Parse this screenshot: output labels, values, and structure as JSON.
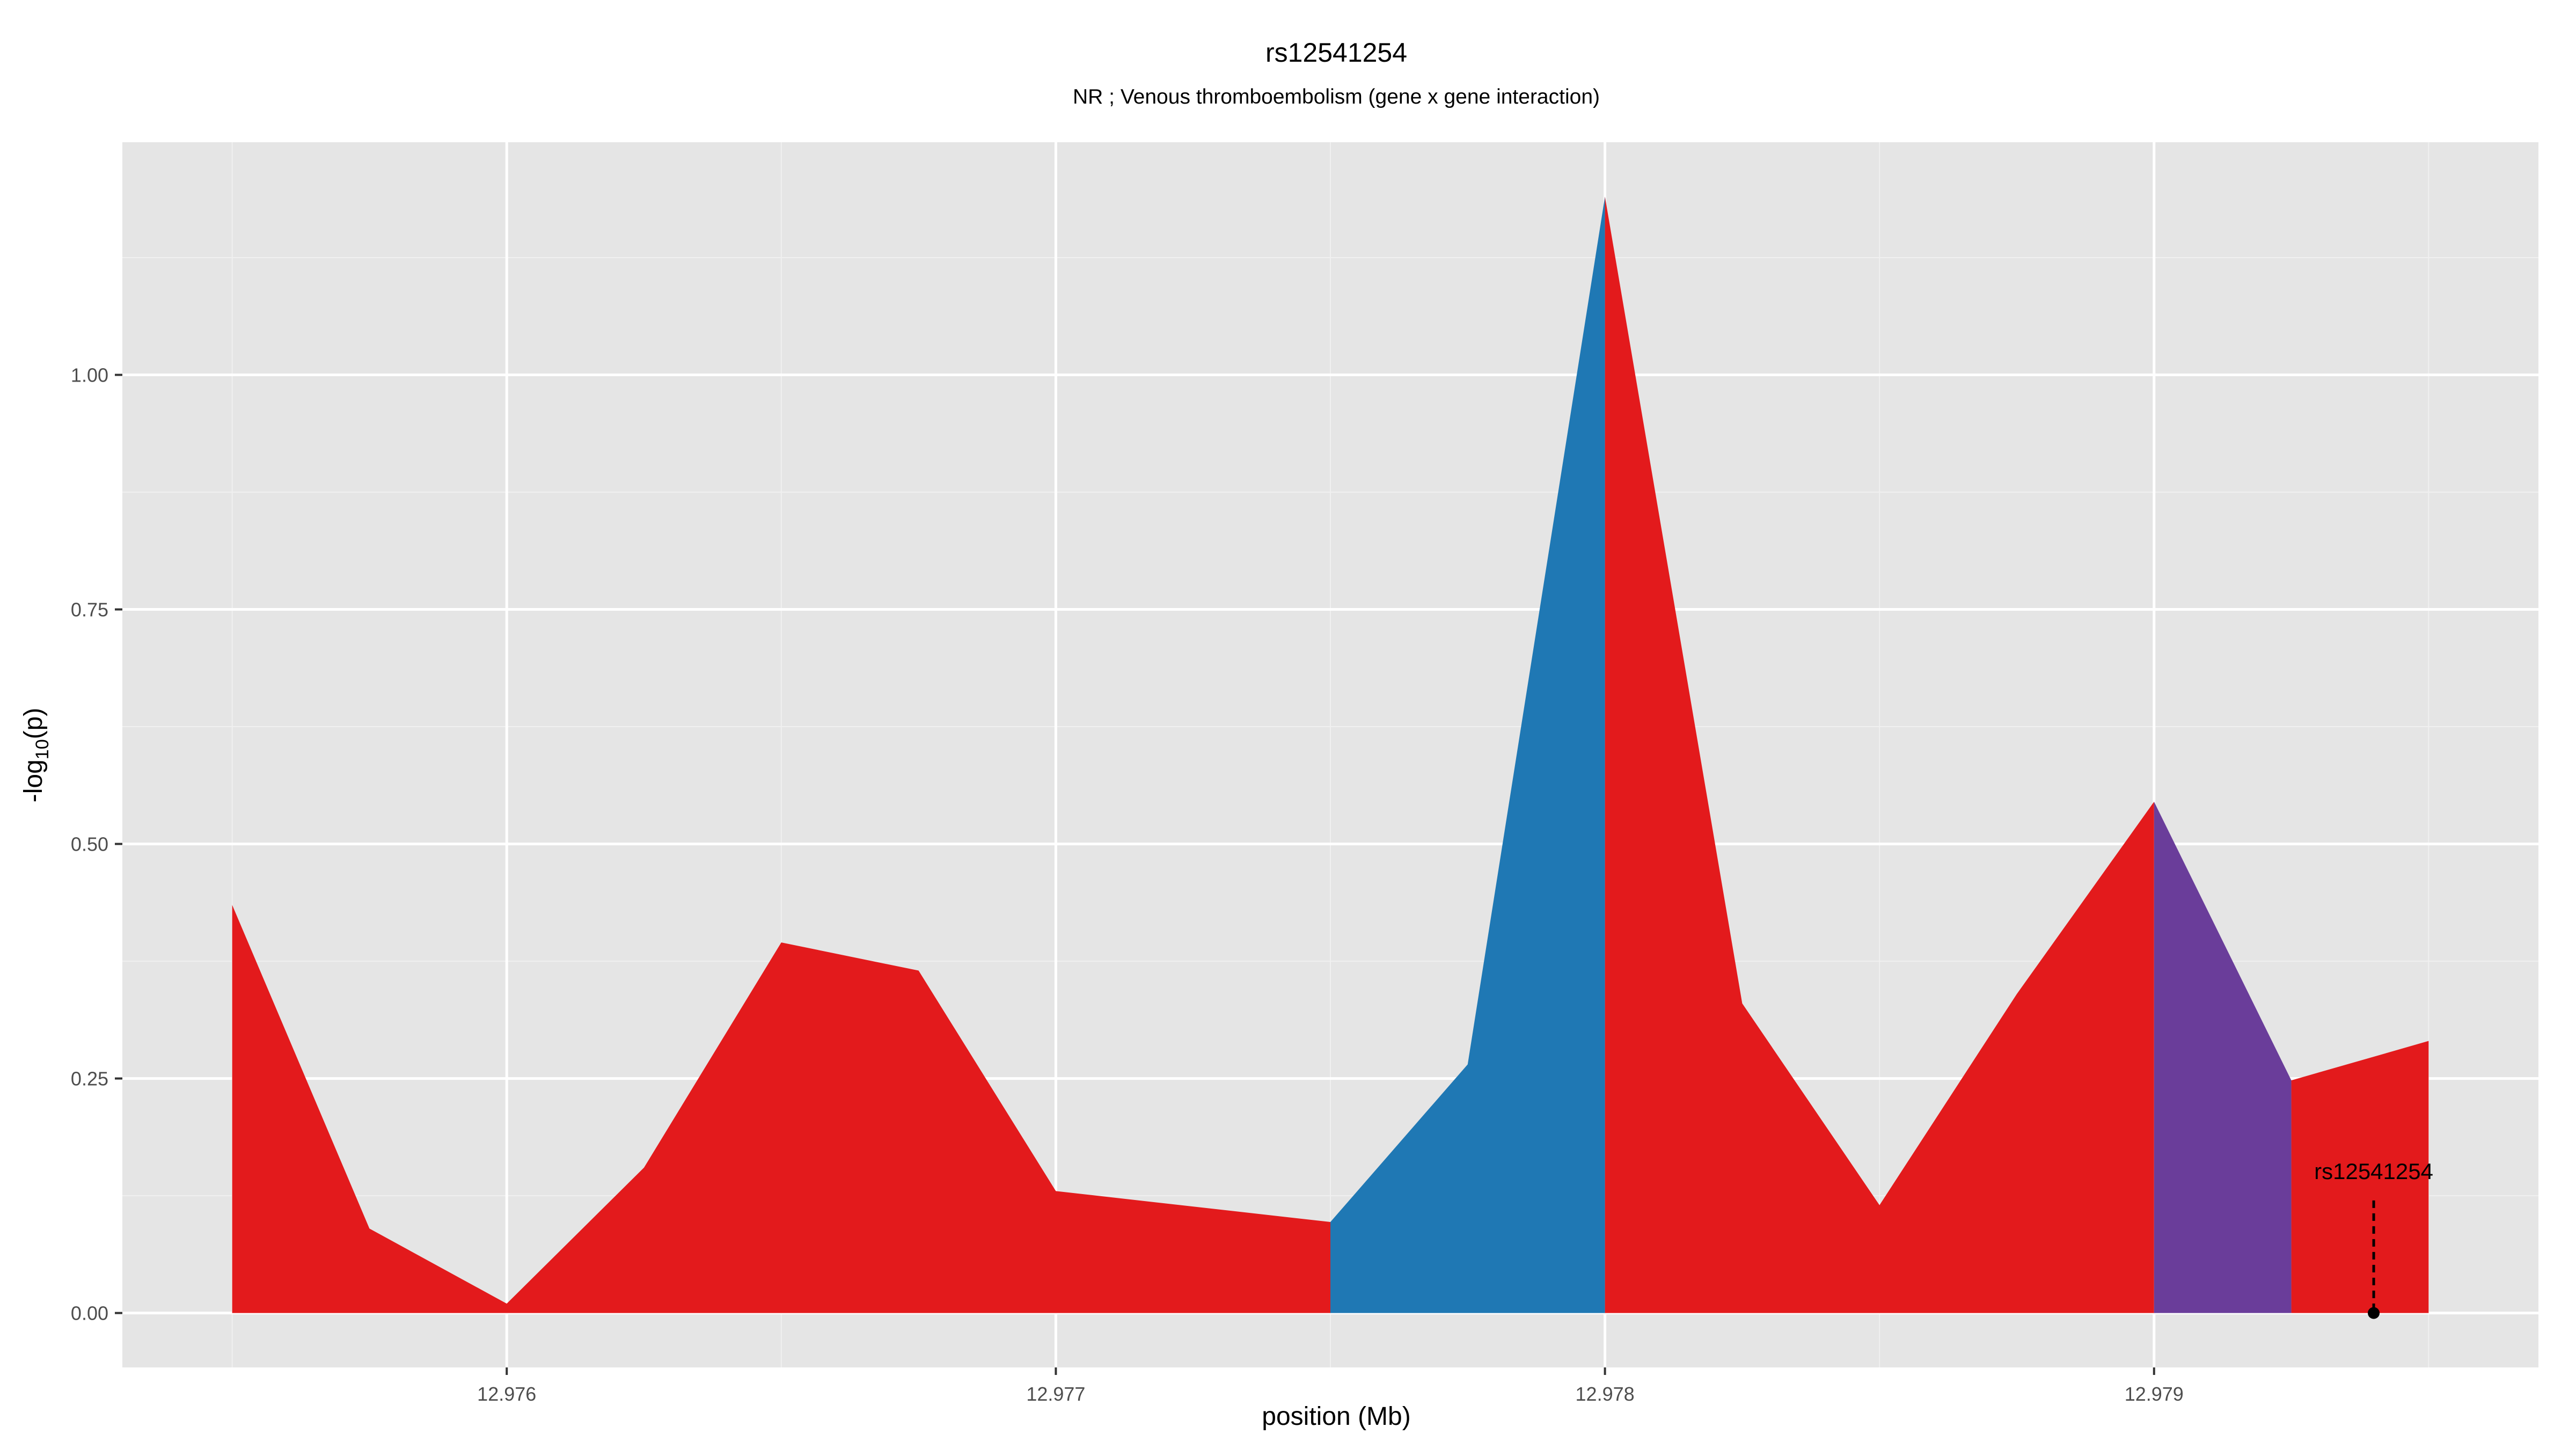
{
  "chart_data": {
    "type": "area",
    "title": "rs12541254",
    "subtitle": "NR ; Venous thromboembolism (gene x gene interaction)",
    "xlabel": "position (Mb)",
    "ylabel_prefix": "-log",
    "ylabel_sub": "10",
    "ylabel_suffix": "(p)",
    "xlim": [
      12.9753,
      12.9797
    ],
    "ylim": [
      -0.058,
      1.248
    ],
    "x_ticks": [
      12.976,
      12.977,
      12.978,
      12.979
    ],
    "x_tick_labels": [
      "12.976",
      "12.977",
      "12.978",
      "12.979"
    ],
    "y_ticks": [
      0,
      0.25,
      0.5,
      0.75,
      1.0
    ],
    "y_tick_labels": [
      "0.00",
      "0.25",
      "0.50",
      "0.75",
      "1.00"
    ],
    "grid": true,
    "colors": {
      "panel_background": "#e5e5e5",
      "grid_major": "#ffffff",
      "grid_minor": "#f0f0f0",
      "red": "#e31a1c",
      "blue": "#1f78b4",
      "purple": "#6a3d9a"
    },
    "series": [
      {
        "color_key": "red",
        "x": [
          12.9755,
          12.97575,
          12.976,
          12.97625,
          12.9765,
          12.97675,
          12.977,
          12.9775
        ],
        "y": [
          0.435,
          0.09,
          0.01,
          0.155,
          0.395,
          0.365,
          0.13,
          0.097
        ]
      },
      {
        "color_key": "blue",
        "x": [
          12.9775,
          12.97775,
          12.978
        ],
        "y": [
          0.097,
          0.265,
          1.19
        ]
      },
      {
        "color_key": "red",
        "x": [
          12.978,
          12.97825,
          12.9785,
          12.97875,
          12.979
        ],
        "y": [
          1.19,
          0.33,
          0.115,
          0.34,
          0.545
        ]
      },
      {
        "color_key": "purple",
        "x": [
          12.979,
          12.97925
        ],
        "y": [
          0.545,
          0.248
        ]
      },
      {
        "color_key": "red",
        "x": [
          12.97925,
          12.9795
        ],
        "y": [
          0.248,
          0.29
        ]
      }
    ],
    "annotation": {
      "label": "rs12541254",
      "x": 12.9794,
      "y": 0,
      "line_top": 0.12
    }
  }
}
